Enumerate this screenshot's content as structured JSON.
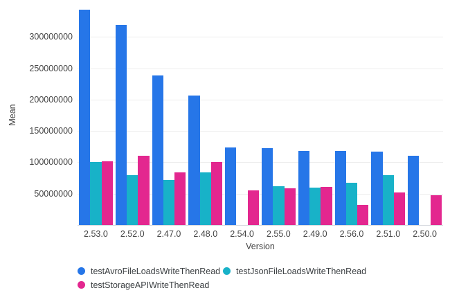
{
  "chart_data": {
    "type": "bar",
    "title": "",
    "xlabel": "Version",
    "ylabel": "Mean",
    "categories": [
      "2.53.0",
      "2.52.0",
      "2.47.0",
      "2.48.0",
      "2.54.0",
      "2.55.0",
      "2.49.0",
      "2.56.0",
      "2.51.0",
      "2.50.0"
    ],
    "series": [
      {
        "name": "testAvroFileLoadsWriteThenRead",
        "color": "#2676e8",
        "values": [
          343000000,
          319000000,
          238000000,
          207000000,
          124000000,
          123000000,
          118000000,
          118000000,
          117000000,
          110000000
        ]
      },
      {
        "name": "testJsonFileLoadsWriteThenRead",
        "color": "#18b2c8",
        "values": [
          100000000,
          79000000,
          72000000,
          84000000,
          null,
          62000000,
          60000000,
          67000000,
          80000000,
          null
        ]
      },
      {
        "name": "testStorageAPIWriteThenRead",
        "color": "#e3278f",
        "values": [
          102000000,
          110000000,
          84000000,
          101000000,
          55000000,
          58000000,
          61000000,
          32000000,
          52000000,
          48000000
        ]
      }
    ],
    "ylim": [
      0,
      350000000
    ],
    "yticks": [
      50000000,
      100000000,
      150000000,
      200000000,
      250000000,
      300000000
    ],
    "grid": true,
    "legend_position": "bottom",
    "colors": {
      "gridline": "#ececec",
      "axis_line": "#d6d9de",
      "tick_text": "#444444",
      "legend_text": "#3c4043",
      "background": "#ffffff"
    }
  }
}
